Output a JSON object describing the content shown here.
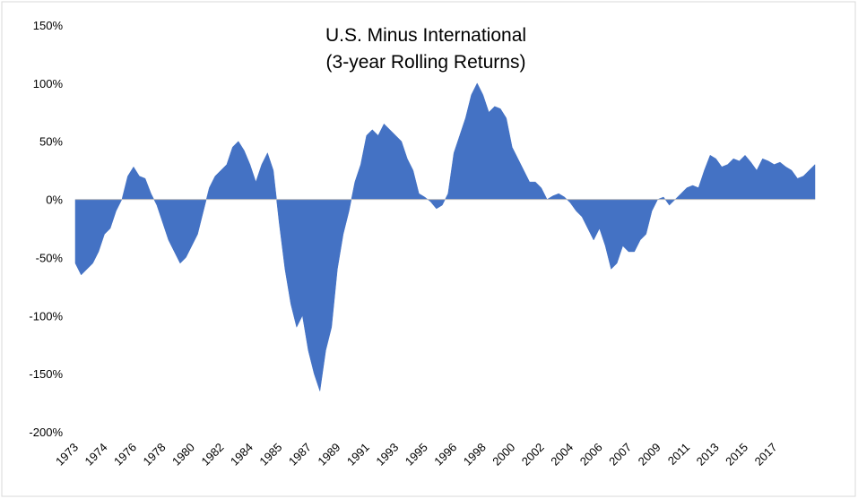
{
  "chart_data": {
    "type": "area",
    "title": "U.S. Minus International",
    "subtitle": "(3-year Rolling Returns)",
    "color": "#4472c4",
    "categories": [
      "1973",
      null,
      null,
      null,
      null,
      "1974",
      null,
      null,
      null,
      null,
      "1976",
      null,
      null,
      null,
      null,
      "1978",
      null,
      null,
      null,
      null,
      "1980",
      null,
      null,
      null,
      null,
      "1982",
      null,
      null,
      null,
      null,
      "1984",
      null,
      null,
      null,
      null,
      "1985",
      null,
      null,
      null,
      null,
      "1987",
      null,
      null,
      null,
      null,
      "1989",
      null,
      null,
      null,
      null,
      "1991",
      null,
      null,
      null,
      null,
      "1993",
      null,
      null,
      null,
      null,
      "1995",
      null,
      null,
      null,
      null,
      "1996",
      null,
      null,
      null,
      null,
      "1998",
      null,
      null,
      null,
      null,
      "2000",
      null,
      null,
      null,
      null,
      "2002",
      null,
      null,
      null,
      null,
      "2004",
      null,
      null,
      null,
      null,
      "2006",
      null,
      null,
      null,
      null,
      "2007",
      null,
      null,
      null,
      null,
      "2009",
      null,
      null,
      null,
      null,
      "2011",
      null,
      null,
      null,
      null,
      "2013",
      null,
      null,
      null,
      null,
      "2015",
      null,
      null,
      null,
      null,
      "2017",
      null,
      null,
      null,
      null,
      null,
      null,
      null
    ],
    "values": [
      -55,
      -65,
      -60,
      -55,
      -45,
      -30,
      -25,
      -10,
      0,
      20,
      28,
      20,
      18,
      5,
      -5,
      -20,
      -35,
      -45,
      -55,
      -50,
      -40,
      -30,
      -10,
      10,
      20,
      25,
      30,
      45,
      50,
      42,
      30,
      15,
      30,
      40,
      25,
      -20,
      -60,
      -90,
      -110,
      -100,
      -130,
      -150,
      -165,
      -130,
      -110,
      -60,
      -30,
      -10,
      15,
      30,
      55,
      60,
      55,
      65,
      60,
      55,
      50,
      35,
      25,
      5,
      2,
      -2,
      -8,
      -5,
      5,
      40,
      55,
      70,
      90,
      100,
      90,
      75,
      80,
      78,
      70,
      45,
      35,
      25,
      15,
      15,
      10,
      0,
      3,
      5,
      2,
      -3,
      -10,
      -15,
      -25,
      -35,
      -25,
      -40,
      -60,
      -55,
      -40,
      -45,
      -45,
      -35,
      -30,
      -10,
      0,
      2,
      -5,
      0,
      5,
      10,
      12,
      10,
      25,
      38,
      35,
      28,
      30,
      35,
      33,
      38,
      32,
      25,
      35,
      33,
      30,
      32,
      28,
      25,
      18,
      20,
      25,
      30
    ],
    "ylim": [
      -200,
      150
    ],
    "yticks": [
      {
        "value": -200,
        "label": "-200%"
      },
      {
        "value": -150,
        "label": "-150%"
      },
      {
        "value": -100,
        "label": "-100%"
      },
      {
        "value": -50,
        "label": "-50%"
      },
      {
        "value": 0,
        "label": "0%"
      },
      {
        "value": 50,
        "label": "50%"
      },
      {
        "value": 100,
        "label": "100%"
      },
      {
        "value": 150,
        "label": "150%"
      }
    ],
    "grid": false
  }
}
